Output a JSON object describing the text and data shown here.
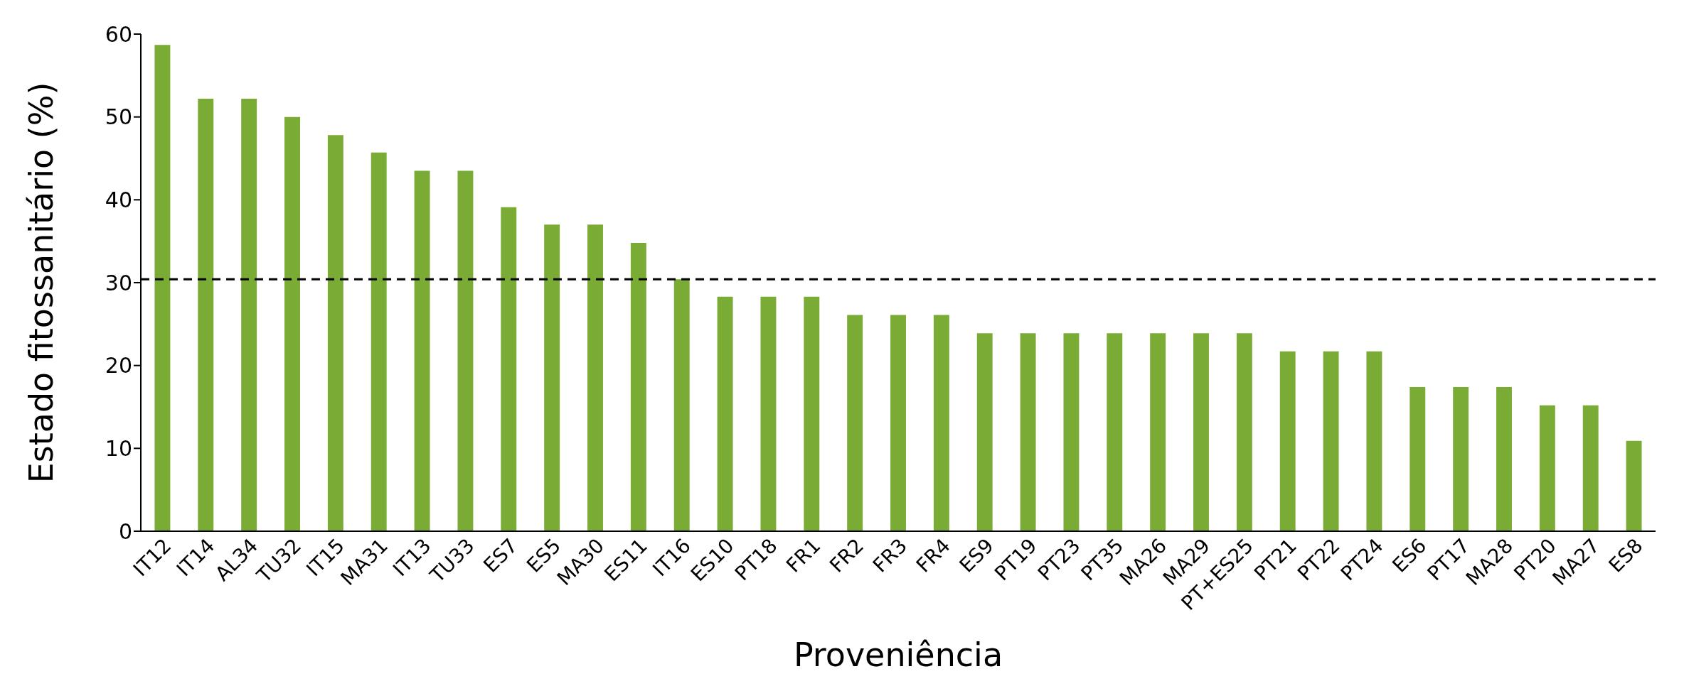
{
  "chart_data": {
    "type": "bar",
    "xlabel": "Proveniência",
    "ylabel": "Estado fitossanitário (%)",
    "categories": [
      "IT12",
      "IT14",
      "AL34",
      "TU32",
      "IT15",
      "MA31",
      "IT13",
      "TU33",
      "ES7",
      "ES5",
      "MA30",
      "ES11",
      "IT16",
      "ES10",
      "PT18",
      "FR1",
      "FR2",
      "FR3",
      "FR4",
      "ES9",
      "PT19",
      "PT23",
      "PT35",
      "MA26",
      "MA29",
      "PT+ES25",
      "PT21",
      "PT22",
      "PT24",
      "ES6",
      "PT17",
      "MA28",
      "PT20",
      "MA27",
      "ES8"
    ],
    "values": [
      58.7,
      52.2,
      52.2,
      50,
      47.8,
      45.7,
      43.5,
      43.5,
      39.1,
      37,
      37,
      34.8,
      30.4,
      28.3,
      28.3,
      28.3,
      26.1,
      26.1,
      26.1,
      23.9,
      23.9,
      23.9,
      23.9,
      23.9,
      23.9,
      23.9,
      21.7,
      21.7,
      21.7,
      17.4,
      17.4,
      17.4,
      15.2,
      15.2,
      10.9
    ],
    "color": "#7aab35",
    "ylim": [
      0,
      60
    ],
    "yticks": [
      0,
      10,
      20,
      30,
      40,
      50,
      60
    ],
    "grid": false,
    "legend": false,
    "ref_lines": [
      {
        "axis": "y",
        "value": 30.4,
        "color": "#000000",
        "line_style": "dashed"
      }
    ]
  }
}
